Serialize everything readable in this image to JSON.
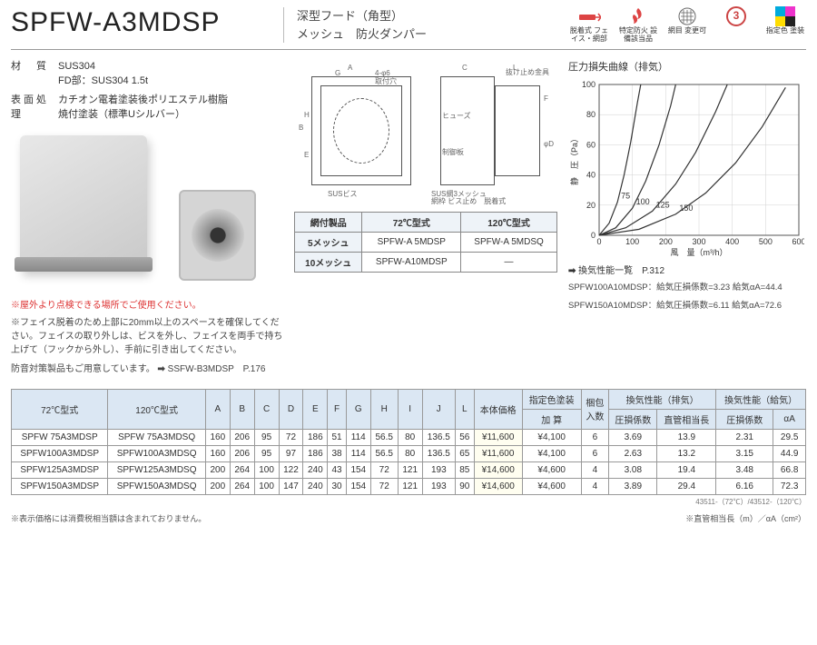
{
  "header": {
    "model": "SPFW-A3MDSP",
    "subtitle_l1": "深型フード（角型）",
    "subtitle_l2": "メッシュ　防火ダンパー",
    "badges": [
      {
        "label": "脱着式\nフェイス・網部"
      },
      {
        "label": "特定防火\n設備該当品"
      },
      {
        "label": "網目\n変更可"
      },
      {
        "label": "③"
      },
      {
        "label": "指定色\n塗装"
      }
    ]
  },
  "specs": {
    "material_label": "材　質",
    "material_l1": "SUS304",
    "material_l2": "FD部：SUS304 1.5t",
    "finish_label": "表面処理",
    "finish_l1": "カチオン電着塗装後ポリエステル樹脂",
    "finish_l2": "焼付塗装（標準Uシルバー）"
  },
  "notes": {
    "red": "※屋外より点検できる場所でご使用ください。",
    "n1": "※フェイス脱着のため上部に20mm以上のスペースを確保してください。フェイスの取り外しは、ビスを外し、フェイスを両手で持ち上げて（フックから外し）、手前に引き出してください。",
    "n2a": "防音対策製品もご用意しています。",
    "n2b": "SSFW-B3MDSP　P.176"
  },
  "meshTable": {
    "h1": "網付製品",
    "h2": "72℃型式",
    "h3": "120℃型式",
    "rows": [
      {
        "mesh": "5メッシュ",
        "c72": "SPFW-A 5MDSP",
        "c120": "SPFW-A 5MDSQ"
      },
      {
        "mesh": "10メッシュ",
        "c72": "SPFW-A10MDSP",
        "c120": "―"
      }
    ]
  },
  "chart": {
    "title": "圧力損失曲線（排気）",
    "xlabel": "風　量（m³/h）",
    "ylabel": "静　圧（Pa）",
    "xlim": [
      0,
      600
    ],
    "ylim": [
      0,
      100
    ],
    "xticks": [
      0,
      100,
      200,
      300,
      400,
      500,
      600
    ],
    "yticks": [
      0,
      20,
      40,
      60,
      80,
      100
    ],
    "grid_color": "#d0d0d0",
    "line_color": "#333333",
    "bg": "#ffffff",
    "curves": [
      {
        "label": "75",
        "pts": [
          [
            0,
            0
          ],
          [
            30,
            8
          ],
          [
            55,
            22
          ],
          [
            75,
            40
          ],
          [
            95,
            62
          ],
          [
            115,
            88
          ],
          [
            125,
            100
          ]
        ]
      },
      {
        "label": "100",
        "pts": [
          [
            0,
            0
          ],
          [
            50,
            5
          ],
          [
            100,
            18
          ],
          [
            140,
            36
          ],
          [
            180,
            60
          ],
          [
            215,
            86
          ],
          [
            230,
            100
          ]
        ]
      },
      {
        "label": "125",
        "pts": [
          [
            0,
            0
          ],
          [
            80,
            5
          ],
          [
            160,
            16
          ],
          [
            230,
            34
          ],
          [
            290,
            55
          ],
          [
            350,
            82
          ],
          [
            385,
            100
          ]
        ]
      },
      {
        "label": "150",
        "pts": [
          [
            0,
            0
          ],
          [
            120,
            4
          ],
          [
            230,
            14
          ],
          [
            320,
            28
          ],
          [
            410,
            48
          ],
          [
            490,
            72
          ],
          [
            560,
            98
          ]
        ]
      }
    ],
    "note": "換気性能一覧　P.312",
    "spec1": "SPFW100A10MDSP：給気圧損係数=3.23 給気αA=44.4",
    "spec2": "SPFW150A10MDSP：給気圧損係数=6.11 給気αA=72.6"
  },
  "mainTable": {
    "headers": {
      "c72": "72℃型式",
      "c120": "120℃型式",
      "dims": [
        "A",
        "B",
        "C",
        "D",
        "E",
        "F",
        "G",
        "H",
        "I",
        "J",
        "L"
      ],
      "price": "本体価格",
      "paint_h": "指定色塗装",
      "paint_s": "加 算",
      "qty": "梱包\n入数",
      "perf_ex": "換気性能（排気）",
      "perf_in": "換気性能（給気）",
      "k": "圧損係数",
      "len": "直管相当長",
      "aa": "αA"
    },
    "rows": [
      {
        "c72": "SPFW 75A3MDSP",
        "c120": "SPFW 75A3MDSQ",
        "d": [
          "160",
          "206",
          "95",
          "72",
          "186",
          "51",
          "114",
          "56.5",
          "80",
          "136.5",
          "56"
        ],
        "price": "¥11,600",
        "paint": "¥4,100",
        "qty": "6",
        "ek": "3.69",
        "el": "13.9",
        "ik": "2.31",
        "ia": "29.5"
      },
      {
        "c72": "SPFW100A3MDSP",
        "c120": "SPFW100A3MDSQ",
        "d": [
          "160",
          "206",
          "95",
          "97",
          "186",
          "38",
          "114",
          "56.5",
          "80",
          "136.5",
          "65"
        ],
        "price": "¥11,600",
        "paint": "¥4,100",
        "qty": "6",
        "ek": "2.63",
        "el": "13.2",
        "ik": "3.15",
        "ia": "44.9"
      },
      {
        "c72": "SPFW125A3MDSP",
        "c120": "SPFW125A3MDSQ",
        "d": [
          "200",
          "264",
          "100",
          "122",
          "240",
          "43",
          "154",
          "72",
          "121",
          "193",
          "85"
        ],
        "price": "¥14,600",
        "paint": "¥4,600",
        "qty": "4",
        "ek": "3.08",
        "el": "19.4",
        "ik": "3.48",
        "ia": "66.8"
      },
      {
        "c72": "SPFW150A3MDSP",
        "c120": "SPFW150A3MDSQ",
        "d": [
          "200",
          "264",
          "100",
          "147",
          "240",
          "30",
          "154",
          "72",
          "121",
          "193",
          "90"
        ],
        "price": "¥14,600",
        "paint": "¥4,600",
        "qty": "4",
        "ek": "3.89",
        "el": "29.4",
        "ik": "6.16",
        "ia": "72.3"
      }
    ],
    "foot_left": "※表示価格には消費税相当額は含まれておりません。",
    "foot_right": "※直管相当長（m）／αA（cm²）",
    "code": "43511-（72℃）/43512-（120℃）"
  }
}
